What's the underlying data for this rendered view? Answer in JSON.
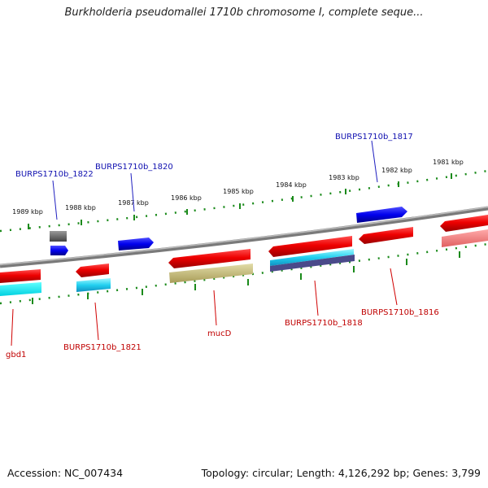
{
  "title": "Burkholderia pseudomallei 1710b chromosome I, complete seque...",
  "footer": {
    "accession": "Accession: NC_007434",
    "topology": "Topology: circular; Length: 4,126,292 bp; Genes: 3,799"
  },
  "colors": {
    "backbone": "#8a8a8a",
    "tick": "#1a8a1a",
    "top_label": "#1010b0",
    "bottom_label": "#c00000",
    "gene_red": "#ee0000",
    "gene_blue": "#0000ee",
    "gene_cyan": "#22c8f0",
    "gene_olive": "#c8bf80",
    "gene_gray": "#666666"
  },
  "ruler": {
    "labels": [
      "1989 kbp",
      "1988 kbp",
      "1987 kbp",
      "1986 kbp",
      "1985 kbp",
      "1984 kbp",
      "1983 kbp",
      "1982 kbp",
      "1981 kbp"
    ]
  },
  "gene_labels": {
    "top": [
      "BURPS1710b_1822",
      "BURPS1710b_1820",
      "BURPS1710b_1817"
    ],
    "bottom": [
      "gbd1",
      "BURPS1710b_1821",
      "mucD",
      "BURPS1710b_1818",
      "BURPS1710b_1816"
    ]
  }
}
